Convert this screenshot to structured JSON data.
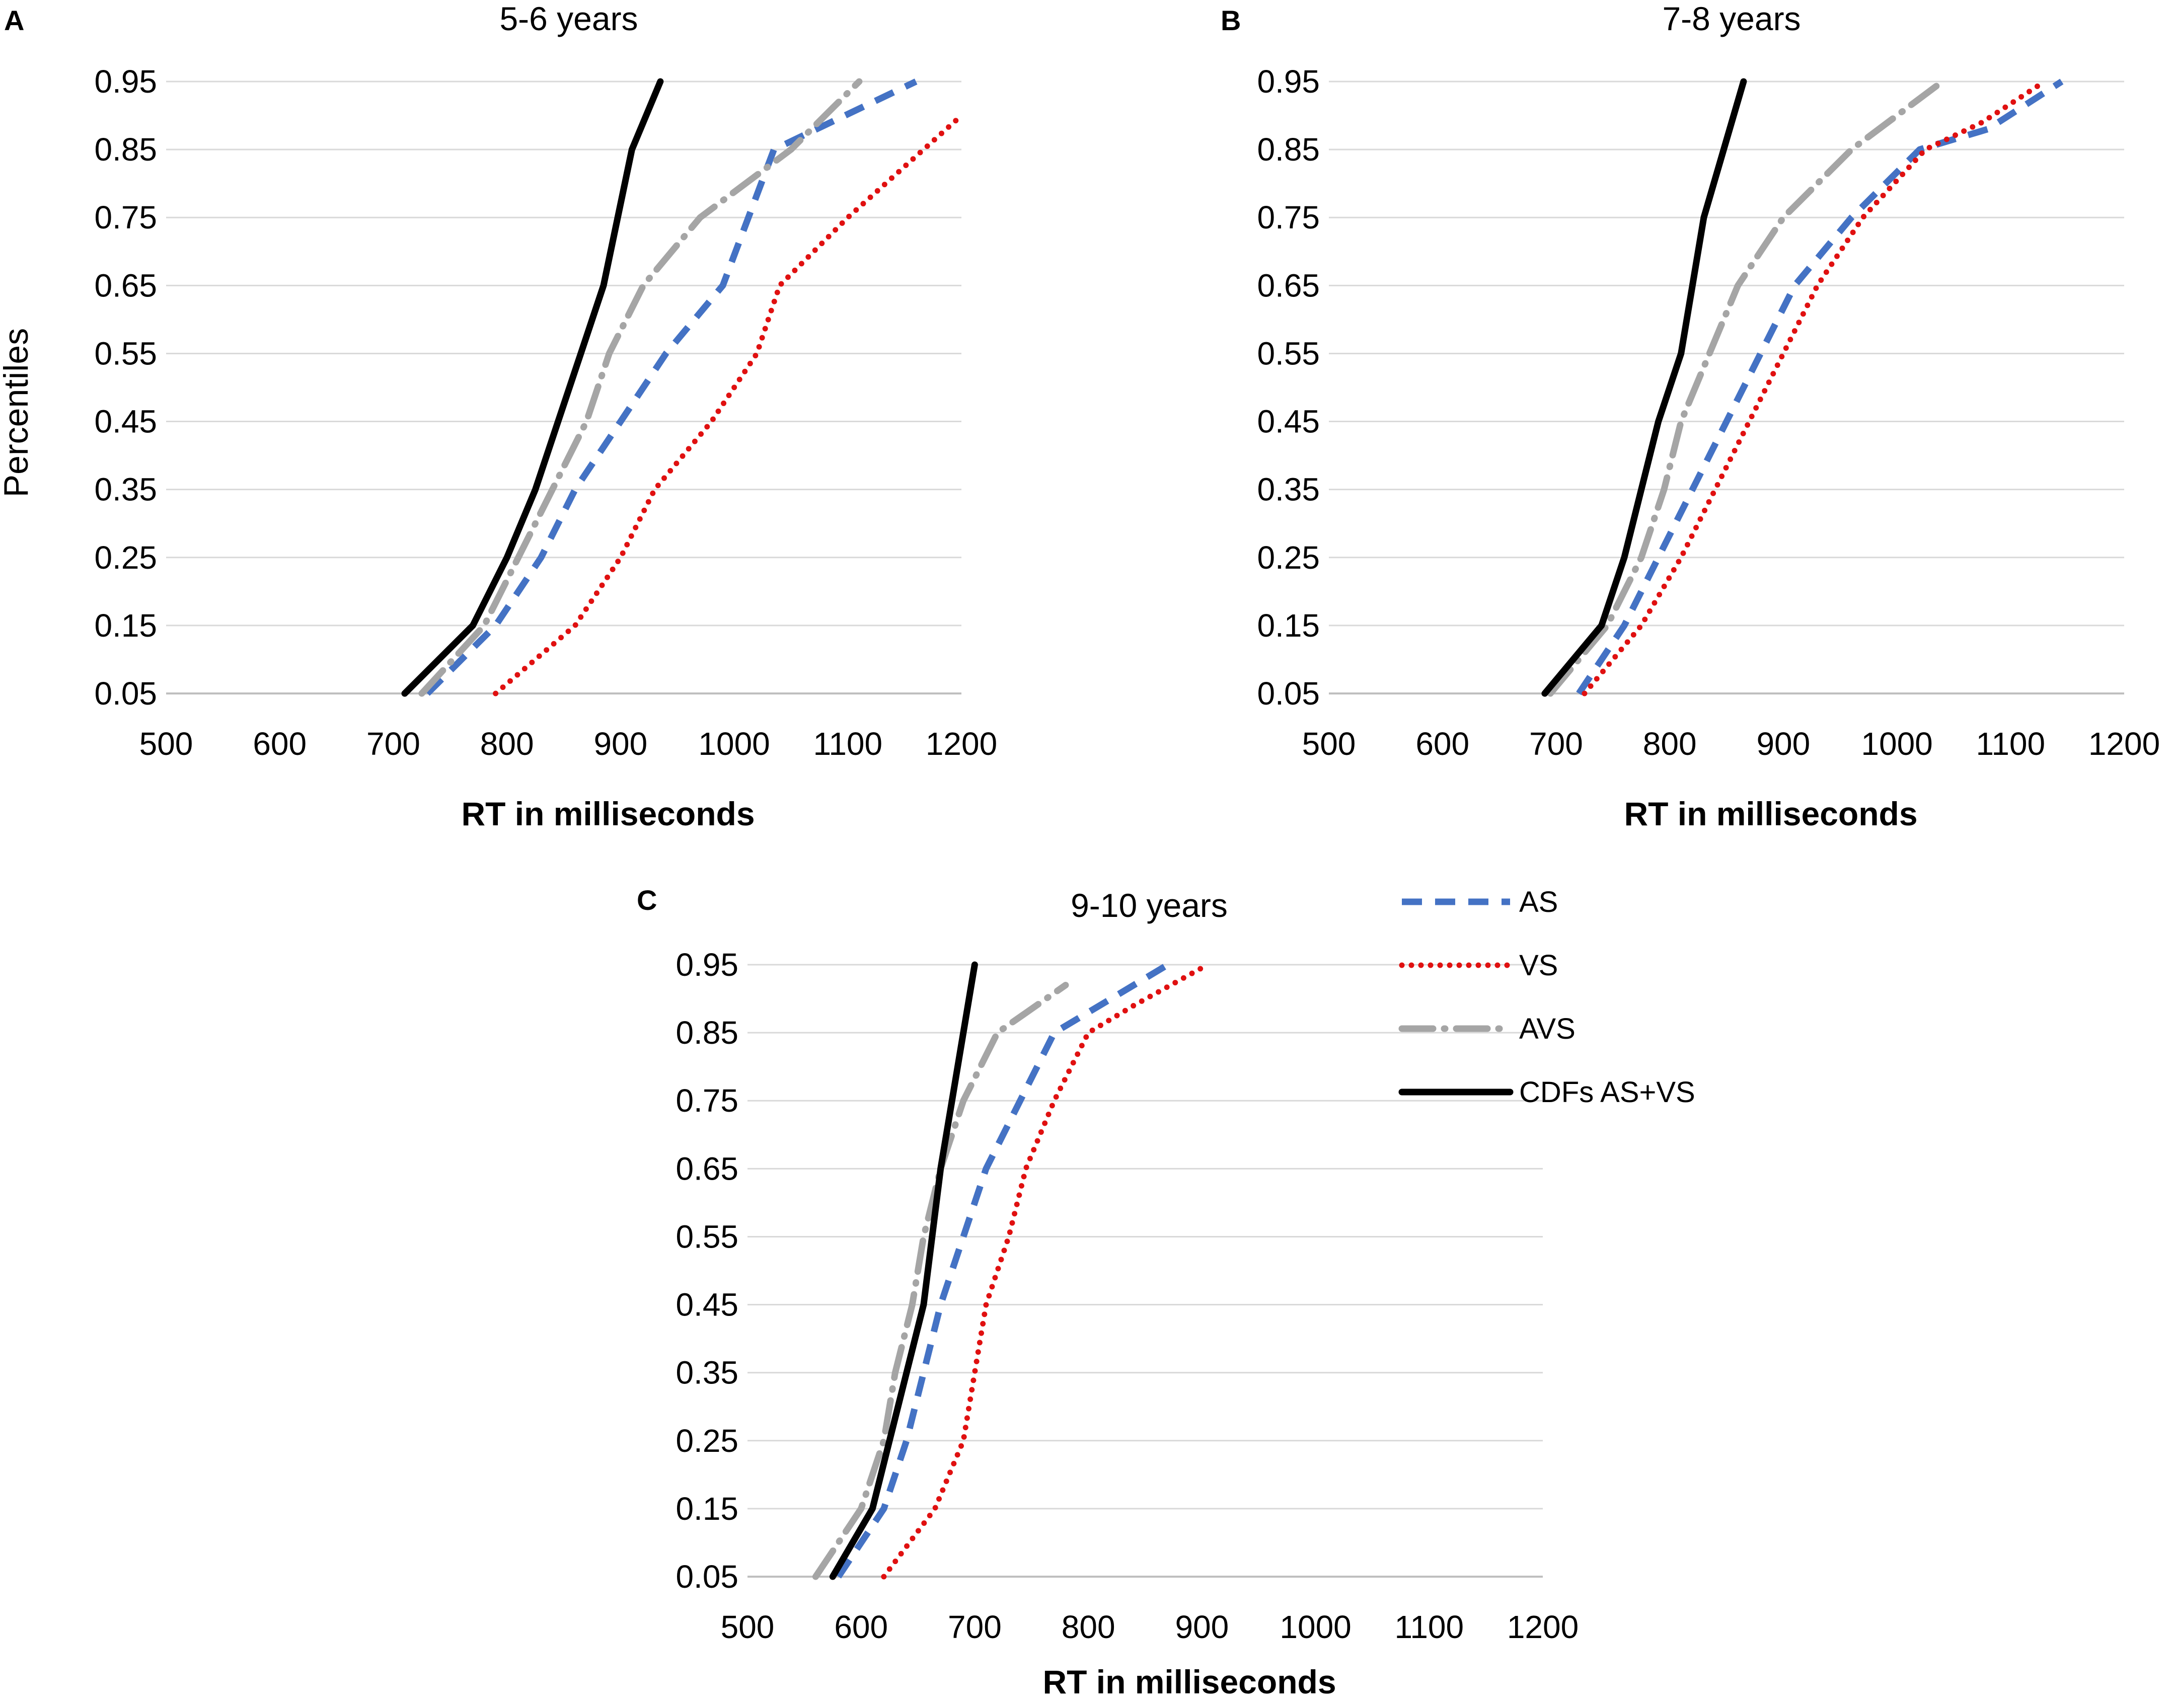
{
  "figure": {
    "legend": {
      "entries": [
        {
          "label": "AS",
          "series": "AS"
        },
        {
          "label": "VS",
          "series": "VS"
        },
        {
          "label": "AVS",
          "series": "AVS"
        },
        {
          "label": "CDFs AS+VS",
          "series": "CDFs AS+VS"
        }
      ]
    },
    "styles": {
      "AS": {
        "color": "#4472c4",
        "dash": "dashed"
      },
      "VS": {
        "color": "#e01010",
        "dash": "dotted"
      },
      "AVS": {
        "color": "#a5a5a5",
        "dash": "dash-dot"
      },
      "CDFs AS+VS": {
        "color": "#000000",
        "dash": "solid"
      }
    }
  },
  "chart_data": [
    {
      "panel": "A",
      "type": "line",
      "title": "5-6 years",
      "xlabel": "RT in milliseconds",
      "ylabel": "Percentiles",
      "xlim": [
        500,
        1200
      ],
      "ylim": [
        0.05,
        0.95
      ],
      "xticks": [
        "500",
        "600",
        "700",
        "800",
        "900",
        "1000",
        "1100",
        "1200"
      ],
      "yticks": [
        "0.05",
        "0.15",
        "0.25",
        "0.35",
        "0.45",
        "0.55",
        "0.65",
        "0.75",
        "0.85",
        "0.95"
      ],
      "grid": true,
      "series": [
        {
          "name": "AS",
          "x": [
            730,
            790,
            830,
            860,
            900,
            940,
            990,
            1035,
            1160
          ],
          "y": [
            0.05,
            0.15,
            0.25,
            0.35,
            0.45,
            0.55,
            0.65,
            0.85,
            0.95
          ]
        },
        {
          "name": "VS",
          "x": [
            790,
            860,
            900,
            930,
            980,
            1020,
            1040,
            1100,
            1200
          ],
          "y": [
            0.05,
            0.15,
            0.25,
            0.35,
            0.45,
            0.55,
            0.65,
            0.75,
            0.9
          ]
        },
        {
          "name": "AVS",
          "x": [
            725,
            780,
            810,
            840,
            870,
            890,
            920,
            970,
            1050,
            1110
          ],
          "y": [
            0.05,
            0.15,
            0.25,
            0.35,
            0.45,
            0.55,
            0.65,
            0.75,
            0.85,
            0.95
          ]
        },
        {
          "name": "CDFs AS+VS",
          "x": [
            710,
            770,
            800,
            825,
            845,
            865,
            885,
            910,
            935
          ],
          "y": [
            0.05,
            0.15,
            0.25,
            0.35,
            0.45,
            0.55,
            0.65,
            0.85,
            0.95
          ]
        }
      ]
    },
    {
      "panel": "B",
      "type": "line",
      "title": "7-8 years",
      "xlabel": "RT in milliseconds",
      "ylabel": "",
      "xlim": [
        500,
        1200
      ],
      "ylim": [
        0.05,
        0.95
      ],
      "xticks": [
        "500",
        "600",
        "700",
        "800",
        "900",
        "1000",
        "1100",
        "1200"
      ],
      "yticks": [
        "0.05",
        "0.15",
        "0.25",
        "0.35",
        "0.45",
        "0.55",
        "0.65",
        "0.75",
        "0.85",
        "0.95"
      ],
      "grid": true,
      "series": [
        {
          "name": "AS",
          "x": [
            720,
            760,
            790,
            820,
            850,
            880,
            910,
            960,
            1020,
            1080,
            1145
          ],
          "y": [
            0.05,
            0.15,
            0.25,
            0.35,
            0.45,
            0.55,
            0.65,
            0.75,
            0.85,
            0.88,
            0.95
          ]
        },
        {
          "name": "VS",
          "x": [
            725,
            775,
            810,
            840,
            870,
            900,
            930,
            970,
            1025,
            1075,
            1130
          ],
          "y": [
            0.05,
            0.15,
            0.25,
            0.35,
            0.45,
            0.55,
            0.65,
            0.75,
            0.85,
            0.89,
            0.95
          ]
        },
        {
          "name": "AVS",
          "x": [
            695,
            745,
            775,
            795,
            810,
            835,
            860,
            900,
            960,
            1040
          ],
          "y": [
            0.05,
            0.15,
            0.25,
            0.35,
            0.45,
            0.55,
            0.65,
            0.75,
            0.85,
            0.95
          ]
        },
        {
          "name": "CDFs AS+VS",
          "x": [
            690,
            740,
            760,
            775,
            790,
            810,
            830,
            865
          ],
          "y": [
            0.05,
            0.15,
            0.25,
            0.35,
            0.45,
            0.55,
            0.75,
            0.95
          ]
        }
      ]
    },
    {
      "panel": "C",
      "type": "line",
      "title": "9-10 years",
      "xlabel": "RT in milliseconds",
      "ylabel": "",
      "xlim": [
        500,
        1200
      ],
      "ylim": [
        0.05,
        0.95
      ],
      "xticks": [
        "500",
        "600",
        "700",
        "800",
        "900",
        "1000",
        "1100",
        "1200"
      ],
      "yticks": [
        "0.05",
        "0.15",
        "0.25",
        "0.35",
        "0.45",
        "0.55",
        "0.65",
        "0.75",
        "0.85",
        "0.95"
      ],
      "grid": true,
      "series": [
        {
          "name": "AS",
          "x": [
            580,
            620,
            640,
            655,
            670,
            690,
            710,
            740,
            770,
            800,
            870
          ],
          "y": [
            0.05,
            0.15,
            0.25,
            0.35,
            0.45,
            0.55,
            0.65,
            0.75,
            0.85,
            0.88,
            0.95
          ]
        },
        {
          "name": "VS",
          "x": [
            620,
            665,
            690,
            700,
            710,
            730,
            745,
            770,
            800,
            840,
            905
          ],
          "y": [
            0.05,
            0.15,
            0.25,
            0.35,
            0.45,
            0.55,
            0.65,
            0.75,
            0.85,
            0.89,
            0.95
          ]
        },
        {
          "name": "AVS",
          "x": [
            560,
            600,
            620,
            630,
            645,
            655,
            670,
            690,
            720,
            780
          ],
          "y": [
            0.05,
            0.15,
            0.25,
            0.35,
            0.45,
            0.55,
            0.65,
            0.75,
            0.85,
            0.92
          ]
        },
        {
          "name": "CDFs AS+VS",
          "x": [
            575,
            610,
            625,
            640,
            655,
            670,
            700
          ],
          "y": [
            0.05,
            0.15,
            0.25,
            0.35,
            0.45,
            0.65,
            0.95
          ]
        }
      ]
    }
  ]
}
